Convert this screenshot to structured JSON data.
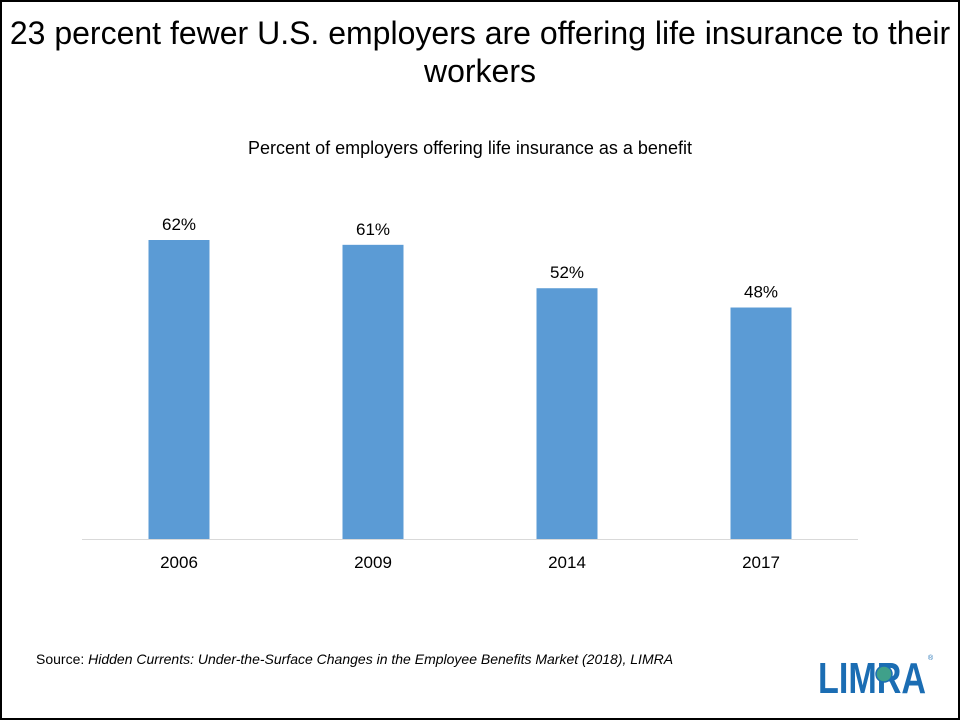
{
  "title": "23 percent fewer U.S. employers are offering life insurance to their workers",
  "chart_data": {
    "type": "bar",
    "title": "Percent of employers offering life insurance as a benefit",
    "categories": [
      "2006",
      "2009",
      "2014",
      "2017"
    ],
    "values": [
      62,
      61,
      52,
      48
    ],
    "data_labels": [
      "62%",
      "61%",
      "52%",
      "48%"
    ],
    "xlabel": "",
    "ylabel": "",
    "ylim": [
      0,
      70
    ],
    "grid": false,
    "legend": "none",
    "bar_color": "#5b9bd5"
  },
  "source": {
    "prefix": "Source: ",
    "italic_text": "Hidden Currents: Under-the-Surface Changes in the Employee Benefits Market (2018), LIMRA"
  },
  "logo": {
    "text": "LIMRA",
    "color": "#1b6db3"
  }
}
